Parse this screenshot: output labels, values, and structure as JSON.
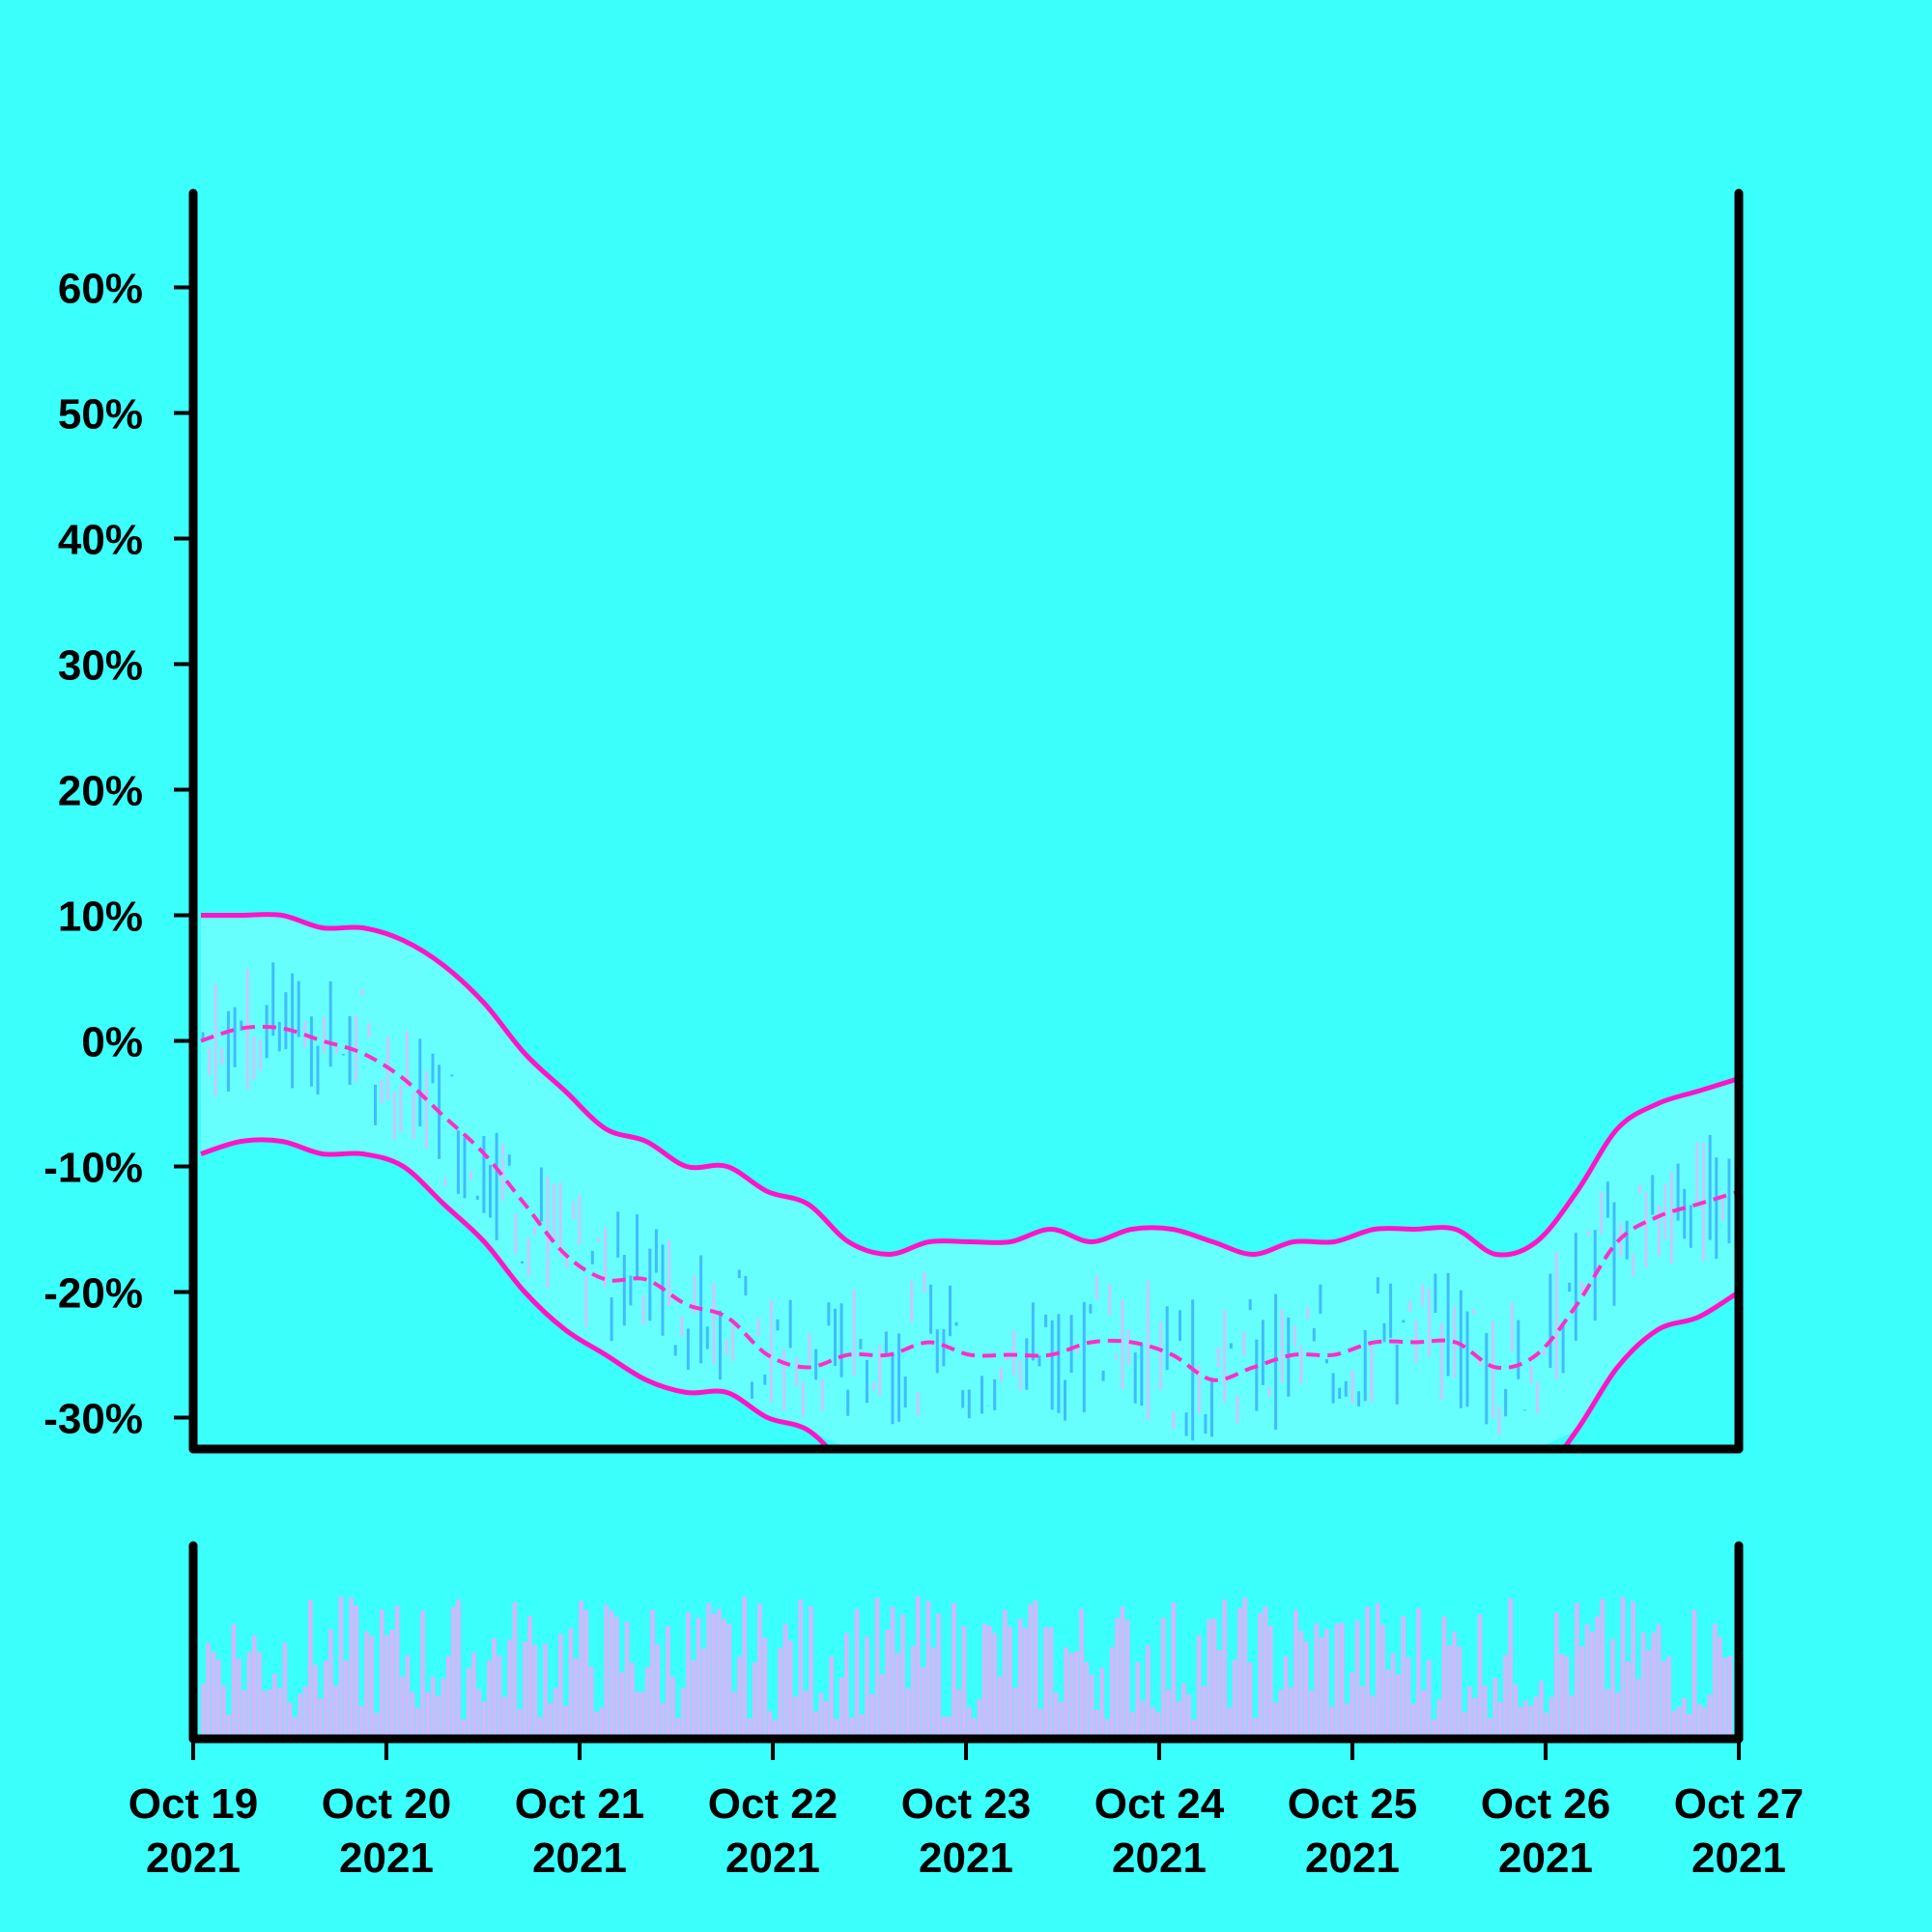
{
  "colors": {
    "background": "#3bfffb",
    "band_fill": "#66fffd",
    "band_line": "#ff14c8",
    "mid_line": "#ff2ec8",
    "candle_up": "#dcbcfc",
    "candle_down": "#3ab0fc",
    "volume": "#d2b8fb",
    "axis": "#000000"
  },
  "chart_data": {
    "type": "line",
    "subtype": "price-envelope-with-volume",
    "title": "",
    "xlabel": "",
    "ylabel": "",
    "x_ticks": [
      {
        "date": "2021-10-19",
        "label": [
          "Oct 19",
          "2021"
        ]
      },
      {
        "date": "2021-10-20",
        "label": [
          "Oct 20",
          "2021"
        ]
      },
      {
        "date": "2021-10-21",
        "label": [
          "Oct 21",
          "2021"
        ]
      },
      {
        "date": "2021-10-22",
        "label": [
          "Oct 22",
          "2021"
        ]
      },
      {
        "date": "2021-10-23",
        "label": [
          "Oct 23",
          "2021"
        ]
      },
      {
        "date": "2021-10-24",
        "label": [
          "Oct 24",
          "2021"
        ]
      },
      {
        "date": "2021-10-25",
        "label": [
          "Oct 25",
          "2021"
        ]
      },
      {
        "date": "2021-10-26",
        "label": [
          "Oct 26",
          "2021"
        ]
      },
      {
        "date": "2021-10-27",
        "label": [
          "Oct 27",
          "2021"
        ]
      }
    ],
    "y_ticks": [
      {
        "value": 60,
        "label": "60%"
      },
      {
        "value": 50,
        "label": "50%"
      },
      {
        "value": 40,
        "label": "40%"
      },
      {
        "value": 30,
        "label": "30%"
      },
      {
        "value": 20,
        "label": "20%"
      },
      {
        "value": 10,
        "label": "10%"
      },
      {
        "value": 0,
        "label": "0%"
      },
      {
        "value": -10,
        "label": "-10%"
      },
      {
        "value": -20,
        "label": "-20%"
      },
      {
        "value": -30,
        "label": "-30%"
      }
    ],
    "xlim": [
      "2021-10-19",
      "2021-10-27"
    ],
    "ylim": [
      -32.5,
      67.5
    ],
    "grid": false,
    "legend": "none",
    "series": [
      {
        "role": "middle",
        "style": "dashed",
        "values": [
          0,
          1,
          1,
          0,
          -1,
          -3,
          -6,
          -9,
          -13,
          -17,
          -19,
          -19,
          -21,
          -22,
          -25,
          -26,
          -25,
          -25,
          -24,
          -25,
          -25,
          -25,
          -24,
          -24,
          -25,
          -27,
          -26,
          -25,
          -25,
          -24,
          -24,
          -24,
          -26,
          -25,
          -21,
          -16,
          -14,
          -13,
          -12
        ]
      },
      {
        "role": "upper",
        "style": "solid",
        "values": [
          10,
          10,
          10,
          9,
          9,
          8,
          6,
          3,
          -1,
          -4,
          -7,
          -8,
          -10,
          -10,
          -12,
          -13,
          -16,
          -17,
          -16,
          -16,
          -16,
          -15,
          -16,
          -15,
          -15,
          -16,
          -17,
          -16,
          -16,
          -15,
          -15,
          -15,
          -17,
          -16,
          -12,
          -7,
          -5,
          -4,
          -3
        ]
      },
      {
        "role": "lower",
        "style": "solid",
        "values": [
          -9,
          -8,
          -8,
          -9,
          -9,
          -10,
          -13,
          -16,
          -20,
          -23,
          -25,
          -27,
          -28,
          -28,
          -30,
          -31,
          -34,
          -36,
          -35,
          -35,
          -35,
          -34,
          -35,
          -34,
          -34,
          -35,
          -36,
          -35,
          -35,
          -34,
          -34,
          -34,
          -36,
          -35,
          -31,
          -26,
          -23,
          -22,
          -20
        ]
      }
    ],
    "volume_panel": {
      "y_axis_labels": false,
      "relative_values": true
    }
  }
}
